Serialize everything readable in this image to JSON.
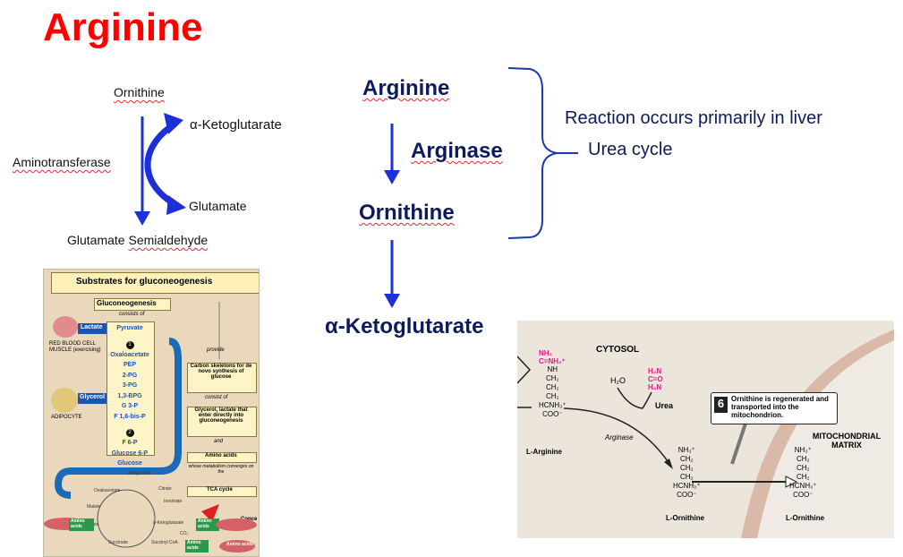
{
  "title": "Arginine",
  "left_pathway": {
    "top": "Ornithine",
    "cosubstrate": "α-Ketoglutarate",
    "enzyme": "Aminotransferase",
    "coproduct": "Glutamate",
    "product_a": "Glutamate",
    "product_b": "Semialdehyde"
  },
  "main_pathway": {
    "substrate": "Arginine",
    "enzyme": "Arginase",
    "product": "Ornithine",
    "final": "α-Ketoglutarate"
  },
  "notes": {
    "line1": "Reaction occurs primarily  in liver",
    "line2": "Urea cycle"
  },
  "gluconeogenesis_figure": {
    "title": "Substrates for gluconeogenesis",
    "header": "Gluconeogenesis",
    "consists_of": "consists of",
    "lactate": "Lactate",
    "rbc": "RED BLOOD CELL",
    "muscle": "MUSCLE (exercising)",
    "glycerol": "Glycerol",
    "adipocyte": "ADIPOCYTE",
    "steps": [
      "Pyruvate",
      "Oxaloacetate",
      "PEP",
      "2-PG",
      "3-PG",
      "1,3-BPG",
      "G 3-P",
      "F 1,6-bis-P",
      "F 6-P",
      "Glucose 6-P",
      "Glucose"
    ],
    "step_markers": [
      "1",
      "2"
    ],
    "provide": "provide",
    "box1": "Carbon skeletons for de novo synthesis of glucose",
    "consist_of": "consist of",
    "box2": "Glycerol, lactate that enter directly into gluconeogenesis",
    "and": "and",
    "box3": "Amino acids",
    "whose": "whose metabolism converges on the",
    "box4": "TCA cycle",
    "conc": "Conce",
    "tca": [
      "Acetyl CoA",
      "Citrate",
      "Isocitrate",
      "α-Ketoglutarate",
      "Succinyl CoA",
      "Succinate",
      "Fumarate",
      "Malate",
      "Oxaloacetate",
      "CO₂"
    ],
    "amino1": "Amino acids",
    "amino2": "Amino acids",
    "amino3": "Amino acids",
    "amino4": "Amino acids"
  },
  "urea_figure": {
    "cytosol": "CYTOSOL",
    "h2o": "H₂O",
    "urea": "Urea",
    "arginase": "Arginase",
    "l_arginine": "L-Arginine",
    "l_ornithine_1": "L-Ornithine",
    "l_ornithine_2": "L-Ornithine",
    "step_number": "6",
    "callout": "Ornithine is regenerated and transported into the mitochondrion.",
    "matrix": "MITOCHONDRIAL MATRIX",
    "arg_struct": [
      "NH",
      "CH₂",
      "CH₂",
      "CH₂",
      "HCNH₃⁺",
      "COO⁻"
    ],
    "arg_head": [
      "NH₂",
      "C=NH₂⁺"
    ],
    "urea_struct": [
      "H₂N",
      "C=O",
      "H₂N"
    ],
    "orn_struct": [
      "NH₃⁺",
      "CH₂",
      "CH₂",
      "CH₂",
      "HCNH₃⁺",
      "COO⁻"
    ]
  }
}
